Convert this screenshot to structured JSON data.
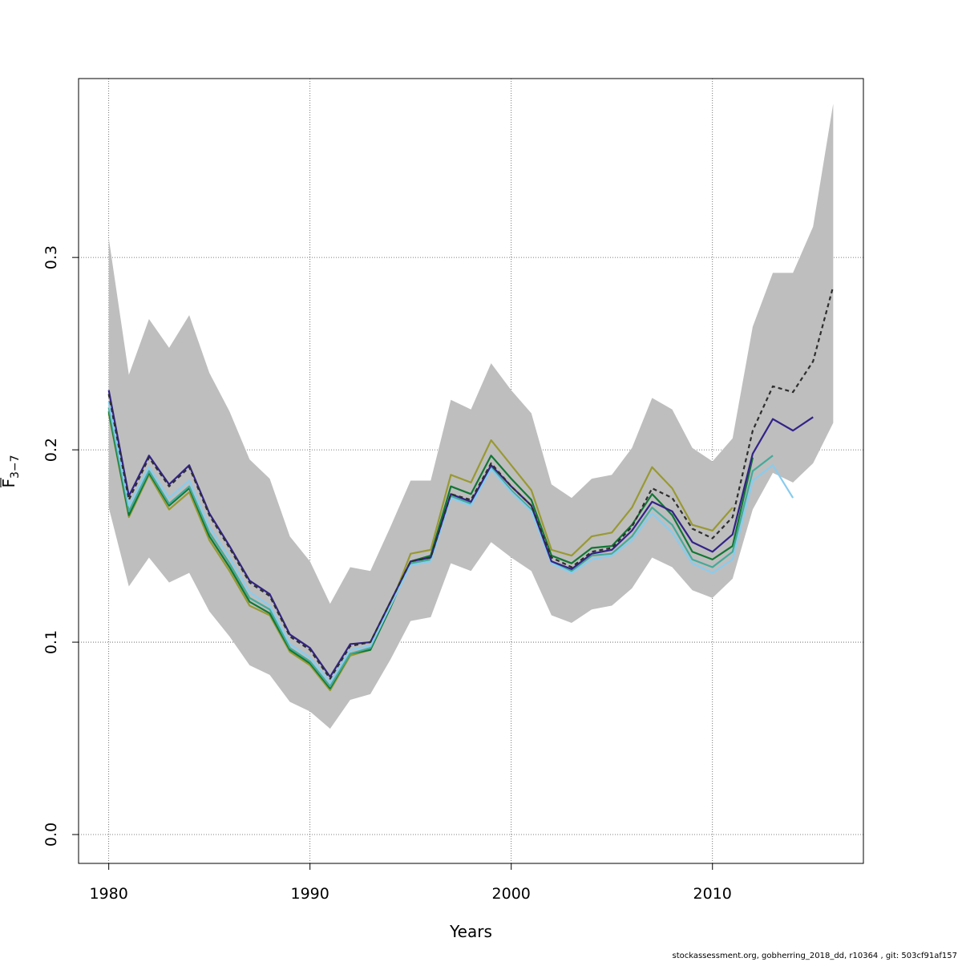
{
  "chart_data": {
    "type": "line",
    "title": "",
    "xlabel": "Years",
    "ylabel": "F",
    "ylabel_subscript": "3−7",
    "xlim": [
      1978.5,
      2017.5
    ],
    "ylim": [
      -0.015,
      0.393
    ],
    "x_ticks": [
      1980,
      1990,
      2000,
      2010
    ],
    "x_tick_labels": [
      "1980",
      "1990",
      "2000",
      "2010"
    ],
    "y_ticks": [
      0.0,
      0.1,
      0.2,
      0.3
    ],
    "y_tick_labels": [
      "0.0",
      "0.1",
      "0.2",
      "0.3"
    ],
    "grid": true,
    "legend": "none",
    "band": {
      "color": "#bebebe",
      "x": [
        1980,
        1981,
        1982,
        1983,
        1984,
        1985,
        1986,
        1987,
        1988,
        1989,
        1990,
        1991,
        1992,
        1993,
        1994,
        1995,
        1996,
        1997,
        1998,
        1999,
        2000,
        2001,
        2002,
        2003,
        2004,
        2005,
        2006,
        2007,
        2008,
        2009,
        2010,
        2011,
        2012,
        2013,
        2014,
        2015,
        2016
      ],
      "upper": [
        0.31,
        0.239,
        0.268,
        0.253,
        0.27,
        0.24,
        0.22,
        0.195,
        0.185,
        0.155,
        0.142,
        0.12,
        0.139,
        0.137,
        0.16,
        0.184,
        0.184,
        0.226,
        0.221,
        0.245,
        0.231,
        0.219,
        0.182,
        0.175,
        0.185,
        0.187,
        0.201,
        0.227,
        0.221,
        0.201,
        0.194,
        0.206,
        0.264,
        0.292,
        0.292,
        0.316,
        0.38
      ],
      "lower": [
        0.17,
        0.129,
        0.144,
        0.131,
        0.136,
        0.116,
        0.103,
        0.088,
        0.083,
        0.069,
        0.064,
        0.055,
        0.07,
        0.073,
        0.091,
        0.111,
        0.113,
        0.141,
        0.137,
        0.152,
        0.144,
        0.137,
        0.114,
        0.11,
        0.117,
        0.119,
        0.128,
        0.144,
        0.139,
        0.127,
        0.123,
        0.133,
        0.169,
        0.188,
        0.183,
        0.193,
        0.214
      ]
    },
    "series": [
      {
        "color": "#2e2e2e",
        "dash": "5,4",
        "x": [
          1980,
          1981,
          1982,
          1983,
          1984,
          1985,
          1986,
          1987,
          1988,
          1989,
          1990,
          1991,
          1992,
          1993,
          1994,
          1995,
          1996,
          1997,
          1998,
          1999,
          2000,
          2001,
          2002,
          2003,
          2004,
          2005,
          2006,
          2007,
          2008,
          2009,
          2010,
          2011,
          2012,
          2013,
          2014,
          2015,
          2016
        ],
        "values": [
          0.229,
          0.174,
          0.196,
          0.181,
          0.191,
          0.166,
          0.149,
          0.131,
          0.124,
          0.103,
          0.096,
          0.081,
          0.098,
          0.1,
          0.121,
          0.142,
          0.144,
          0.177,
          0.174,
          0.193,
          0.181,
          0.171,
          0.144,
          0.139,
          0.147,
          0.149,
          0.16,
          0.18,
          0.175,
          0.159,
          0.154,
          0.165,
          0.21,
          0.233,
          0.23,
          0.246,
          0.285
        ]
      },
      {
        "color": "#332288",
        "dash": "",
        "x": [
          1980,
          1981,
          1982,
          1983,
          1984,
          1985,
          1986,
          1987,
          1988,
          1989,
          1990,
          1991,
          1992,
          1993,
          1994,
          1995,
          1996,
          1997,
          1998,
          1999,
          2000,
          2001,
          2002,
          2003,
          2004,
          2005,
          2006,
          2007,
          2008,
          2009,
          2010,
          2011,
          2012,
          2013,
          2014,
          2015
        ],
        "values": [
          0.231,
          0.176,
          0.197,
          0.182,
          0.192,
          0.167,
          0.15,
          0.132,
          0.125,
          0.104,
          0.097,
          0.082,
          0.099,
          0.1,
          0.121,
          0.142,
          0.144,
          0.177,
          0.173,
          0.192,
          0.181,
          0.171,
          0.142,
          0.138,
          0.146,
          0.148,
          0.158,
          0.173,
          0.168,
          0.152,
          0.147,
          0.156,
          0.198,
          0.216,
          0.21,
          0.217
        ]
      },
      {
        "color": "#88ccee",
        "dash": "",
        "x": [
          1980,
          1981,
          1982,
          1983,
          1984,
          1985,
          1986,
          1987,
          1988,
          1989,
          1990,
          1991,
          1992,
          1993,
          1994,
          1995,
          1996,
          1997,
          1998,
          1999,
          2000,
          2001,
          2002,
          2003,
          2004,
          2005,
          2006,
          2007,
          2008,
          2009,
          2010,
          2011,
          2012,
          2013,
          2014
        ],
        "values": [
          0.225,
          0.171,
          0.191,
          0.175,
          0.184,
          0.16,
          0.144,
          0.126,
          0.119,
          0.099,
          0.092,
          0.079,
          0.096,
          0.098,
          0.119,
          0.14,
          0.142,
          0.175,
          0.171,
          0.19,
          0.178,
          0.168,
          0.141,
          0.136,
          0.143,
          0.145,
          0.153,
          0.167,
          0.157,
          0.141,
          0.136,
          0.143,
          0.184,
          0.192,
          0.175
        ]
      },
      {
        "color": "#44aa99",
        "dash": "",
        "x": [
          1980,
          1981,
          1982,
          1983,
          1984,
          1985,
          1986,
          1987,
          1988,
          1989,
          1990,
          1991,
          1992,
          1993,
          1994,
          1995,
          1996,
          1997,
          1998,
          1999,
          2000,
          2001,
          2002,
          2003,
          2004,
          2005,
          2006,
          2007,
          2008,
          2009,
          2010,
          2011,
          2012,
          2013
        ],
        "values": [
          0.222,
          0.168,
          0.189,
          0.172,
          0.181,
          0.157,
          0.141,
          0.123,
          0.117,
          0.097,
          0.09,
          0.077,
          0.094,
          0.097,
          0.119,
          0.141,
          0.143,
          0.176,
          0.172,
          0.191,
          0.179,
          0.169,
          0.142,
          0.137,
          0.145,
          0.146,
          0.155,
          0.17,
          0.161,
          0.143,
          0.139,
          0.147,
          0.189,
          0.197
        ]
      },
      {
        "color": "#117733",
        "dash": "",
        "x": [
          1980,
          1981,
          1982,
          1983,
          1984,
          1985,
          1986,
          1987,
          1988,
          1989,
          1990,
          1991,
          1992,
          1993,
          1994,
          1995,
          1996,
          1997,
          1998,
          1999,
          2000,
          2001,
          2002,
          2003,
          2004,
          2005,
          2006,
          2007,
          2008,
          2009,
          2010,
          2011,
          2012
        ],
        "values": [
          0.22,
          0.166,
          0.188,
          0.171,
          0.18,
          0.155,
          0.139,
          0.121,
          0.115,
          0.096,
          0.089,
          0.076,
          0.094,
          0.096,
          0.118,
          0.142,
          0.145,
          0.181,
          0.177,
          0.197,
          0.185,
          0.174,
          0.145,
          0.141,
          0.149,
          0.15,
          0.161,
          0.177,
          0.166,
          0.147,
          0.143,
          0.15,
          0.196
        ]
      },
      {
        "color": "#999933",
        "dash": "",
        "x": [
          1980,
          1981,
          1982,
          1983,
          1984,
          1985,
          1986,
          1987,
          1988,
          1989,
          1990,
          1991,
          1992,
          1993,
          1994,
          1995,
          1996,
          1997,
          1998,
          1999,
          2000,
          2001,
          2002,
          2003,
          2004,
          2005,
          2006,
          2007,
          2008,
          2009,
          2010,
          2011
        ],
        "values": [
          0.219,
          0.165,
          0.187,
          0.169,
          0.178,
          0.153,
          0.137,
          0.119,
          0.114,
          0.095,
          0.088,
          0.075,
          0.093,
          0.096,
          0.119,
          0.146,
          0.148,
          0.187,
          0.183,
          0.205,
          0.192,
          0.179,
          0.148,
          0.145,
          0.155,
          0.157,
          0.17,
          0.191,
          0.18,
          0.161,
          0.158,
          0.17
        ]
      }
    ]
  },
  "footer": {
    "text": "stockassessment.org, gobherring_2018_dd, r10364 , git: 503cf91af157"
  }
}
